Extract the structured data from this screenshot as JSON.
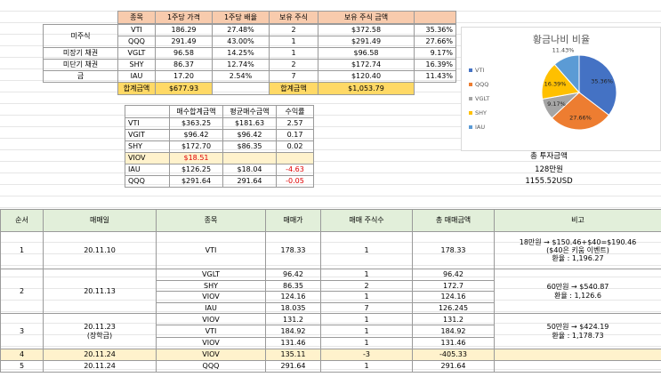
{
  "holdings": {
    "header": [
      "종목",
      "1주당 가격",
      "1주당 배율",
      "보유 주식",
      "보유 주식 금액"
    ],
    "groups": [
      "미주식",
      "미장기 채권",
      "미단기 채권",
      "금"
    ],
    "rows": [
      [
        "VTI",
        "186.29",
        "27.48%",
        "2",
        "$372.58",
        "35.36%"
      ],
      [
        "QQQ",
        "291.49",
        "43.00%",
        "1",
        "$291.49",
        "27.66%"
      ],
      [
        "VGLT",
        "96.58",
        "14.25%",
        "1",
        "$96.58",
        "9.17%"
      ],
      [
        "SHY",
        "86.37",
        "12.74%",
        "2",
        "$172.74",
        "16.39%"
      ],
      [
        "IAU",
        "17.20",
        "2.54%",
        "7",
        "$120.40",
        "11.43%"
      ]
    ],
    "total": [
      "합계금액",
      "$677.93",
      "합계금액",
      "$1,053.79"
    ]
  },
  "purchases": {
    "header": [
      "매수합계금액",
      "평균매수금액",
      "수익률"
    ],
    "rows": [
      [
        "VTI",
        "$363.25",
        "$181.63",
        "2.57"
      ],
      [
        "VGIT",
        "$96.42",
        "$96.42",
        "0.17"
      ],
      [
        "SHY",
        "$172.70",
        "$86.35",
        "0.02"
      ],
      [
        "VIOV",
        "$18.51"
      ],
      [
        "IAU",
        "$126.25",
        "$18.04",
        "-4.63"
      ],
      [
        "QQQ",
        "$291.64",
        "291.64",
        "-0.05"
      ]
    ]
  },
  "chart_data": {
    "type": "pie",
    "title": "황금나비 비율",
    "categories": [
      "VTI",
      "QQQ",
      "VGLT",
      "SHY",
      "IAU"
    ],
    "values": [
      35.36,
      27.66,
      9.17,
      16.39,
      11.43
    ],
    "value_labels": [
      "35.36%",
      "27.66%",
      "9.17%",
      "16.39%",
      "11.43%"
    ],
    "colors": [
      "#4472c4",
      "#ed7d31",
      "#a5a5a5",
      "#ffc000",
      "#5b9bd5"
    ],
    "legend": "left"
  },
  "summary": [
    "총 투자금액",
    "128만원",
    "1155.52USD"
  ],
  "trades": {
    "header": [
      "순서",
      "매매일",
      "종목",
      "매매가",
      "매매 주식수",
      "총 매매금액",
      "비고"
    ],
    "groups": [
      {
        "no": "1",
        "date": [
          "20.11.10"
        ],
        "note": [
          "18만원 → $150.46+$40=$190.46",
          "($40은 키움 이벤트)",
          "환율 : 1,196.27"
        ],
        "rows": [
          [
            "VTI",
            "178.33",
            "1",
            "178.33"
          ]
        ]
      },
      {
        "no": "2",
        "date": [
          "20.11.13"
        ],
        "note": [
          "60만원 → $540.87",
          "환율 : 1,126.6"
        ],
        "rows": [
          [
            "VGLT",
            "96.42",
            "1",
            "96.42"
          ],
          [
            "SHY",
            "86.35",
            "2",
            "172.7"
          ],
          [
            "VIOV",
            "124.16",
            "1",
            "124.16"
          ],
          [
            "IAU",
            "18.035",
            "7",
            "126.245"
          ]
        ]
      },
      {
        "no": "3",
        "date": [
          "20.11.23",
          "(장학금)"
        ],
        "note": [
          "50만원 → $424.19",
          "환율 : 1,178.73"
        ],
        "rows": [
          [
            "VIOV",
            "131.2",
            "1",
            "131.2"
          ],
          [
            "VTI",
            "184.92",
            "1",
            "184.92"
          ],
          [
            "VIOV",
            "131.46",
            "1",
            "131.46"
          ]
        ]
      },
      {
        "no": "4",
        "date": [
          "20.11.24"
        ],
        "note": [],
        "rows": [
          [
            "VIOV",
            "135.11",
            "-3",
            "-405.33"
          ]
        ]
      },
      {
        "no": "5",
        "date": [
          "20.11.24"
        ],
        "note": [],
        "rows": [
          [
            "QQQ",
            "291.64",
            "1",
            "291.64"
          ]
        ]
      }
    ]
  }
}
